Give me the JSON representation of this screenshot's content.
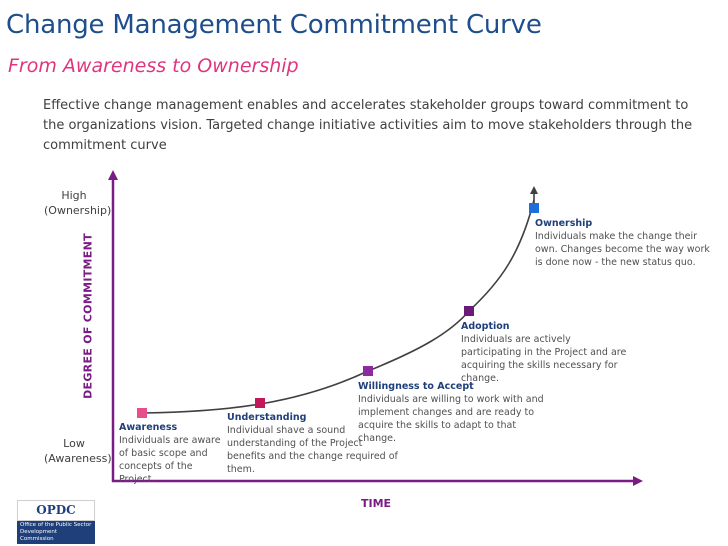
{
  "header": {
    "title": "Change Management Commitment Curve",
    "subtitle": "From Awareness to Ownership"
  },
  "intro": "Effective change management enables and accelerates stakeholder groups toward commitment to the organizations vision. Targeted change initiative activities aim to move stakeholders through the commitment curve",
  "axes": {
    "y_label": "DEGREE OF COMMITMENT",
    "x_label": "TIME",
    "high": "High",
    "high_sub": "(Ownership)",
    "low": "Low",
    "low_sub": "(Awareness)"
  },
  "stages": [
    {
      "name": "Awareness",
      "desc": "Individuals are aware of basic scope and concepts of the Project.",
      "color": "#e84e8a"
    },
    {
      "name": "Understanding",
      "desc": "Individual shave a sound understanding of the Project benefits and the change required of them.",
      "color": "#c2185b"
    },
    {
      "name": "Willingness to Accept",
      "desc": "Individuals are willing to work with and implement changes and are ready to acquire the skills to adapt to that change.",
      "color": "#8e2aa0"
    },
    {
      "name": "Adoption",
      "desc": "Individuals are actively participating in the Project and are acquiring the skills necessary for change.",
      "color": "#6a1b7a"
    },
    {
      "name": "Ownership",
      "desc": "Individuals make the change their own. Changes become the way work is done now - the new status quo.",
      "color": "#1e6fd9"
    }
  ],
  "colors": {
    "axis": "#7b1b86",
    "curve": "#404040"
  },
  "logo": {
    "name": "OPDC",
    "line1": "Office of the Public Sector",
    "line2": "Development Commission"
  }
}
